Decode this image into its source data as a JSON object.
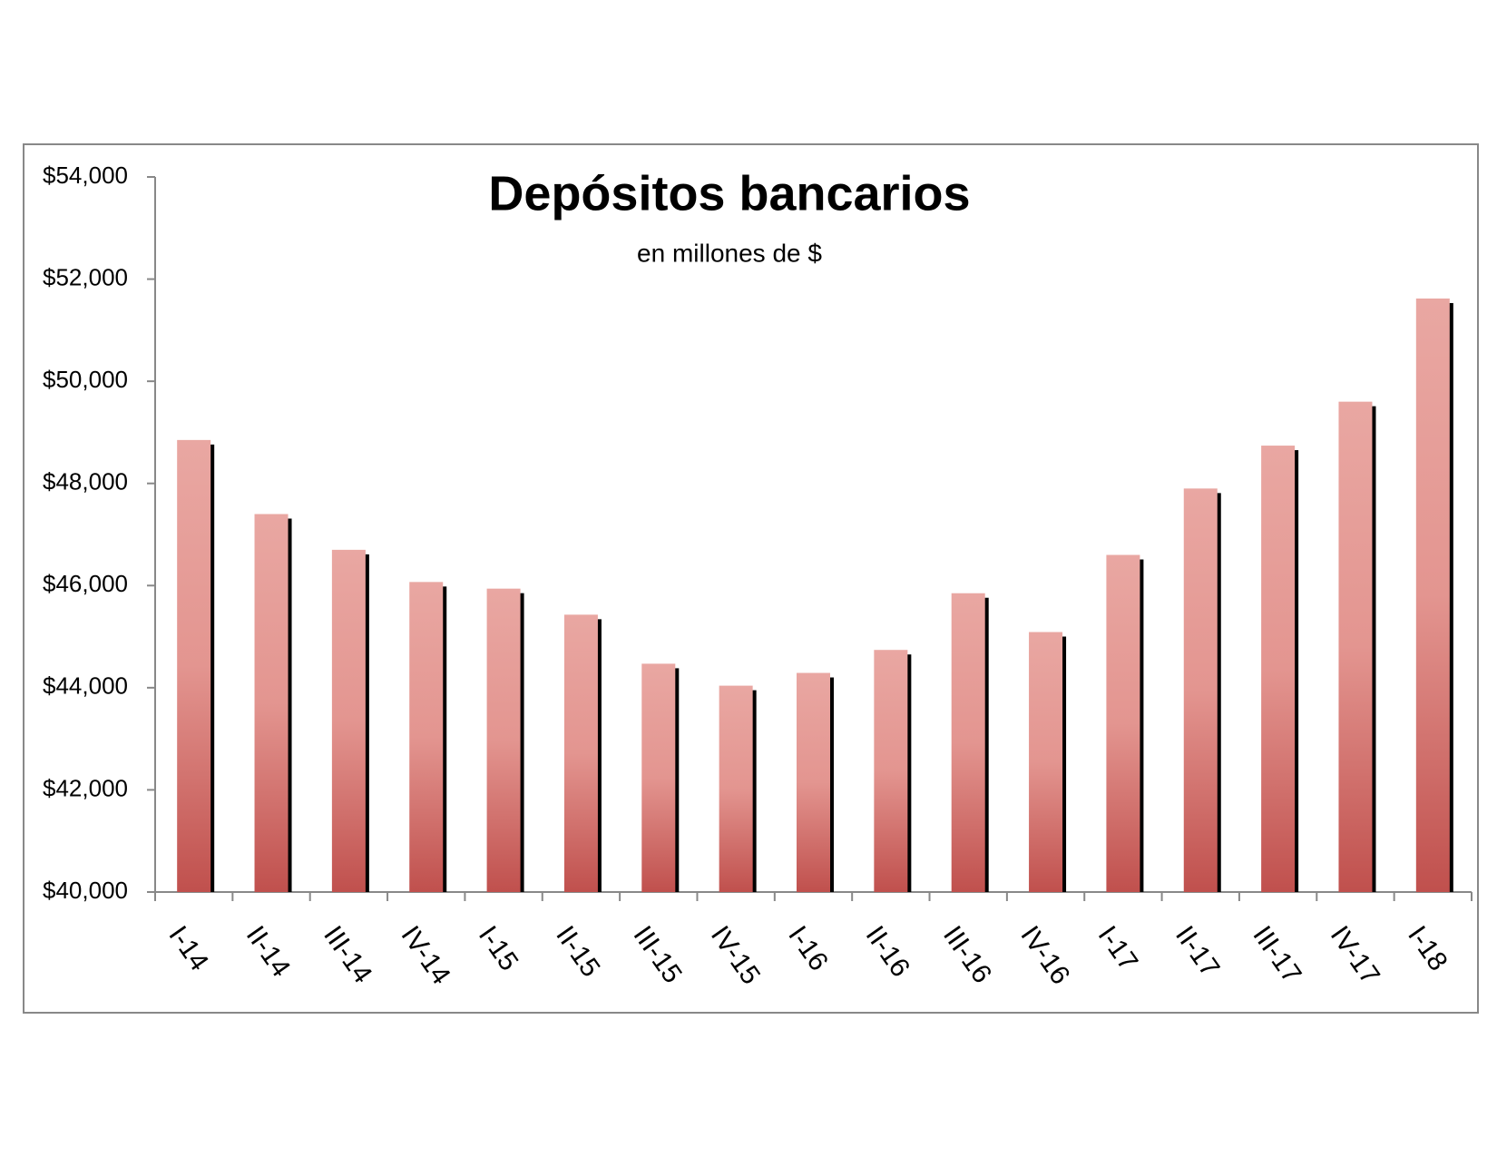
{
  "chart_data": {
    "type": "bar",
    "title": "Depósitos bancarios",
    "subtitle": "en millones de $",
    "categories": [
      "I-14",
      "II-14",
      "III-14",
      "IV-14",
      "I-15",
      "II-15",
      "III-15",
      "IV-15",
      "I-16",
      "II-16",
      "III-16",
      "IV-16",
      "I-17",
      "II-17",
      "III-17",
      "IV-17",
      "I-18"
    ],
    "values": [
      48850,
      47400,
      46700,
      46070,
      45940,
      45430,
      44470,
      44040,
      44290,
      44740,
      45850,
      45090,
      46600,
      47900,
      48740,
      49600,
      51620
    ],
    "color": "#c0504d",
    "ylim": [
      40000,
      54000
    ],
    "yticks": [
      {
        "value": 40000,
        "label": "$40,000"
      },
      {
        "value": 42000,
        "label": "$42,000"
      },
      {
        "value": 44000,
        "label": "$44,000"
      },
      {
        "value": 46000,
        "label": "$46,000"
      },
      {
        "value": 48000,
        "label": "$48,000"
      },
      {
        "value": 50000,
        "label": "$50,000"
      },
      {
        "value": 52000,
        "label": "$52,000"
      },
      {
        "value": 54000,
        "label": "$54,000"
      }
    ],
    "grid": false
  }
}
